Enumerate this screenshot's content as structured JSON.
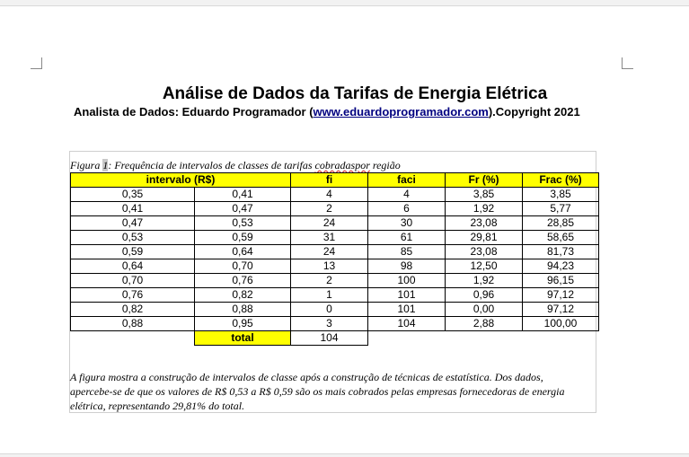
{
  "document": {
    "title": "Análise de Dados da Tarifas de Energia Elétrica",
    "subtitle_prefix": "Analista de Dados: Eduardo Programador (",
    "subtitle_link": "www.eduardoprogramador.com",
    "subtitle_suffix": ").Copyright 2021"
  },
  "figure": {
    "caption_prefix": "Figura ",
    "caption_number": "1",
    "caption_text": ": Frequência de intervalos de classes de tarifas ",
    "caption_wavy": "cobradaspor",
    "caption_end": " região"
  },
  "table": {
    "headers": [
      "intervalo (R$)",
      "fi",
      "faci",
      "Fr (%)",
      "Frac (%)"
    ],
    "rows": [
      [
        "0,35",
        "0,41",
        "4",
        "4",
        "3,85",
        "3,85"
      ],
      [
        "0,41",
        "0,47",
        "2",
        "6",
        "1,92",
        "5,77"
      ],
      [
        "0,47",
        "0,53",
        "24",
        "30",
        "23,08",
        "28,85"
      ],
      [
        "0,53",
        "0,59",
        "31",
        "61",
        "29,81",
        "58,65"
      ],
      [
        "0,59",
        "0,64",
        "24",
        "85",
        "23,08",
        "81,73"
      ],
      [
        "0,64",
        "0,70",
        "13",
        "98",
        "12,50",
        "94,23"
      ],
      [
        "0,70",
        "0,76",
        "2",
        "100",
        "1,92",
        "96,15"
      ],
      [
        "0,76",
        "0,82",
        "1",
        "101",
        "0,96",
        "97,12"
      ],
      [
        "0,82",
        "0,88",
        "0",
        "101",
        "0,00",
        "97,12"
      ],
      [
        "0,88",
        "0,95",
        "3",
        "104",
        "2,88",
        "100,00"
      ]
    ],
    "total_label": "total",
    "total_value": "104"
  },
  "note": "A figura mostra a construção de intervalos de classe após a construção de técnicas de estatística.  Dos dados, apercebe-se de que os valores de R$ 0,53 a R$ 0,59 são os mais cobrados pelas empresas fornecedoras de energia elétrica, representando 29,81% do total."
}
